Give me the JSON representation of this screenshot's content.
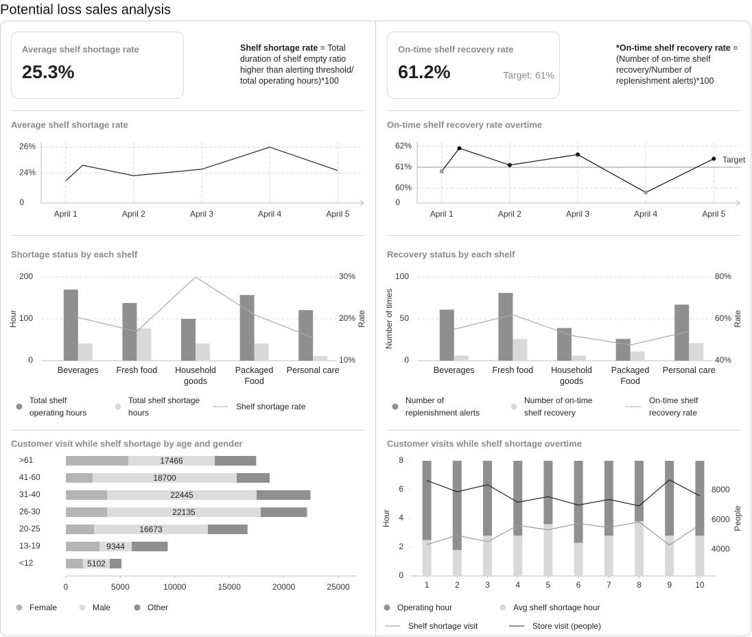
{
  "title": "Potential loss sales analysis",
  "panels": [
    {
      "kpi": {
        "label": "Average shelf shortage rate",
        "value": "25.3%"
      },
      "definition": {
        "term": "Shelf shortage rate",
        "text": "= Total duration of shelf empty ratio higher than alerting threshold/ total operating hours)*100"
      }
    },
    {
      "kpi": {
        "label": "On-time shelf recovery rate",
        "value": "61.2%",
        "target": "Target: 61%"
      },
      "definition": {
        "term": "*On-time shelf recovery rate",
        "text": "= (Number of on-time shelf recovery/Number of replenishment alerts)*100"
      }
    }
  ],
  "chart_data": [
    {
      "type": "line",
      "title": "Average shelf shortage rate",
      "x": [
        1,
        1.25,
        2,
        3,
        4,
        5
      ],
      "values": [
        23.4,
        24.6,
        23.8,
        24.3,
        26,
        24.2
      ],
      "color": "#222222",
      "markers": false,
      "xlim": [
        0.64,
        5.38
      ],
      "xticks": [
        {
          "value": 1,
          "label": "April 1"
        },
        {
          "value": 2,
          "label": "April 2"
        },
        {
          "value": 3,
          "label": "April 3"
        },
        {
          "value": 4,
          "label": "April 4"
        },
        {
          "value": 5,
          "label": "April 5"
        }
      ],
      "ylim": [
        21.7,
        26.4
      ],
      "yticks": [
        {
          "value": 24,
          "label": "24%"
        },
        {
          "value": 26,
          "label": "26%"
        }
      ],
      "axis_break_label": "0",
      "grid": true
    },
    {
      "type": "line",
      "title": "On-time shelf recovery rate overtime",
      "x": [
        1,
        1.26,
        2,
        3,
        4,
        5
      ],
      "values": [
        60.8,
        61.9,
        61.1,
        61.6,
        59.8,
        61.4
      ],
      "color": "#111111",
      "below_color": "#999999",
      "markers": true,
      "xlim": [
        0.64,
        5.38
      ],
      "xticks": [
        {
          "value": 1,
          "label": "April 1"
        },
        {
          "value": 2,
          "label": "April 2"
        },
        {
          "value": 3,
          "label": "April 3"
        },
        {
          "value": 4,
          "label": "April 4"
        },
        {
          "value": 5,
          "label": "April 5"
        }
      ],
      "ylim": [
        59.3,
        62.2
      ],
      "yticks": [
        {
          "value": 60,
          "label": "60%"
        },
        {
          "value": 61,
          "label": "61%"
        },
        {
          "value": 62,
          "label": "62%"
        }
      ],
      "axis_break_label": "0",
      "target": 61,
      "target_label": "Target",
      "grid": true
    },
    {
      "type": "bar_line",
      "title": "Shortage status by each shelf",
      "categories": [
        "Beverages",
        "Fresh food",
        "Household goods",
        "Packaged Food",
        "Personal care"
      ],
      "series": [
        {
          "name": "Total shelf operating hours",
          "type": "bar",
          "color": "#8f8f8f",
          "values": [
            170,
            138,
            100,
            157,
            121
          ]
        },
        {
          "name": "Total shelf shortage hours",
          "type": "bar",
          "color": "#d9d9d9",
          "values": [
            41,
            77,
            41,
            41,
            11
          ]
        },
        {
          "name": "Shelf shortage rate",
          "type": "line",
          "axis": "y2",
          "color": "#aaaaaa",
          "values": [
            20.3,
            17,
            30,
            21,
            15.5
          ]
        }
      ],
      "ylabel": "Hour",
      "ylim": [
        0,
        200
      ],
      "yticks": [
        0,
        100,
        200
      ],
      "y2label": "Rate",
      "y2lim": [
        10,
        30
      ],
      "y2ticks": [
        {
          "value": 10,
          "label": "10%"
        },
        {
          "value": 20,
          "label": "20%"
        },
        {
          "value": 30,
          "label": "30%"
        }
      ]
    },
    {
      "type": "bar_line",
      "title": "Recovery status by each shelf",
      "categories": [
        "Beverages",
        "Fresh food",
        "Household goods",
        "Packaged Food",
        "Personal care"
      ],
      "series": [
        {
          "name": "Number of replenishment alerts",
          "type": "bar",
          "color": "#8f8f8f",
          "values": [
            61,
            81,
            39,
            26,
            67
          ]
        },
        {
          "name": "Number of on-time shelf recovery",
          "type": "bar",
          "color": "#d9d9d9",
          "values": [
            6,
            26,
            6,
            11,
            21
          ]
        },
        {
          "name": "On-time shelf recovery rate",
          "type": "line",
          "axis": "y2",
          "color": "#aaaaaa",
          "values": [
            55,
            62,
            52,
            47.5,
            54
          ]
        }
      ],
      "ylabel": "Number of times",
      "ylim": [
        0,
        100
      ],
      "yticks": [
        0,
        50,
        100
      ],
      "y2label": "Rate",
      "y2lim": [
        40,
        80
      ],
      "y2ticks": [
        {
          "value": 40,
          "label": "40%"
        },
        {
          "value": 60,
          "label": "60%"
        },
        {
          "value": 80,
          "label": "80%"
        }
      ]
    },
    {
      "type": "stacked_barh",
      "title": "Customer visit while shelf shortage by age and gender",
      "categories": [
        ">61",
        "41-60",
        "31-40",
        "26-30",
        "20-25",
        "13-19",
        "<12"
      ],
      "series": [
        {
          "name": "Female",
          "color": "#b5b5b5",
          "values": [
            5730,
            2456,
            3778,
            3778,
            2582,
            3086,
            1574
          ]
        },
        {
          "name": "Male",
          "color": "#dcdcdc",
          "values": [
            7935,
            13224,
            13728,
            14105,
            10453,
            2960,
            2456
          ]
        },
        {
          "name": "Other",
          "color": "#8f8f8f",
          "values": [
            3801,
            3020,
            4939,
            4252,
            3638,
            3298,
            1072
          ]
        }
      ],
      "totals": [
        17466,
        18700,
        22445,
        22135,
        16673,
        9344,
        5102
      ],
      "xlim": [
        0,
        25000
      ],
      "xticks": [
        0,
        5000,
        10000,
        15000,
        20000,
        25000
      ]
    },
    {
      "type": "stacked_bar_line",
      "title": "Customer visits while shelf shortage overtime",
      "x": [
        1,
        2,
        3,
        4,
        5,
        6,
        7,
        8,
        9,
        10
      ],
      "xlim": [
        0.5,
        10.5
      ],
      "xticks": [
        1,
        2,
        3,
        4,
        5,
        6,
        7,
        8,
        9,
        10
      ],
      "series": [
        {
          "name": "Operating hour",
          "type": "bar",
          "color": "#8f8f8f",
          "values": [
            5.5,
            6.2,
            5.2,
            5.2,
            4.4,
            5.7,
            5.2,
            4.2,
            5.2,
            5.2
          ]
        },
        {
          "name": "Avg shelf shortage hour",
          "type": "bar",
          "color": "#d9d9d9",
          "values": [
            2.5,
            1.8,
            2.8,
            2.8,
            3.6,
            2.3,
            2.8,
            3.8,
            2.8,
            2.8
          ]
        },
        {
          "name": "Shelf shortage visit",
          "type": "line",
          "axis": "y2",
          "color": "#999999",
          "values": [
            4330,
            4950,
            4520,
            5620,
            5330,
            5760,
            5480,
            5860,
            4290,
            5670
          ]
        },
        {
          "name": "Store visit (people)",
          "type": "line",
          "axis": "y2",
          "color": "#222222",
          "values": [
            8670,
            7900,
            8380,
            7190,
            7570,
            7000,
            7380,
            6950,
            8710,
            7620
          ]
        }
      ],
      "ylabel": "Hour",
      "ylim": [
        0,
        8
      ],
      "yticks": [
        0,
        2,
        4,
        6,
        8
      ],
      "y2label": "People",
      "y2lim": [
        2200,
        10000
      ],
      "y2ticks": [
        4000,
        6000,
        8000
      ]
    }
  ]
}
